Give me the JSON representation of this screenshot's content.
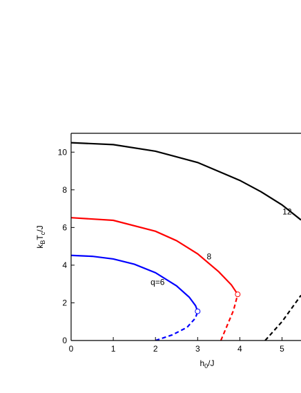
{
  "chart_data": {
    "type": "line",
    "xlabel": [
      {
        "text": "h"
      },
      {
        "text": "0",
        "sub": true
      },
      {
        "text": "/J"
      }
    ],
    "ylabel": [
      {
        "text": "k"
      },
      {
        "text": "B",
        "sub": true
      },
      {
        "text": "T"
      },
      {
        "text": "c",
        "sub": true
      },
      {
        "text": "/J"
      }
    ],
    "xlim": [
      0,
      5.45
    ],
    "ylim": [
      0,
      11
    ],
    "xticks": [
      0,
      1,
      2,
      3,
      4,
      5
    ],
    "yticks": [
      0,
      2,
      4,
      6,
      8,
      10
    ],
    "series": [
      {
        "color": "#0000ff",
        "dash": false,
        "x": [
          0,
          0.5,
          1,
          1.5,
          2,
          2.5,
          2.8,
          2.95,
          3.0
        ],
        "y": [
          4.52,
          4.47,
          4.33,
          4.05,
          3.6,
          2.9,
          2.3,
          1.85,
          1.55
        ]
      },
      {
        "color": "#0000ff",
        "dash": true,
        "x": [
          2.0,
          2.4,
          2.75,
          2.95,
          3.0
        ],
        "y": [
          0,
          0.3,
          0.7,
          1.2,
          1.55
        ]
      },
      {
        "color": "#ff0000",
        "dash": false,
        "x": [
          0,
          1,
          2,
          2.5,
          3,
          3.5,
          3.8,
          3.95
        ],
        "y": [
          6.52,
          6.38,
          5.8,
          5.3,
          4.6,
          3.65,
          2.95,
          2.45
        ]
      },
      {
        "color": "#ff0000",
        "dash": true,
        "x": [
          3.55,
          3.7,
          3.85,
          3.95
        ],
        "y": [
          0,
          0.8,
          1.6,
          2.45
        ]
      },
      {
        "color": "#000000",
        "dash": false,
        "x": [
          0,
          1,
          2,
          3,
          4,
          4.5,
          5,
          5.45
        ],
        "y": [
          10.5,
          10.4,
          10.05,
          9.45,
          8.5,
          7.9,
          7.2,
          6.4
        ]
      },
      {
        "color": "#000000",
        "dash": true,
        "x": [
          4.6,
          5.0,
          5.45
        ],
        "y": [
          0,
          1.0,
          2.4
        ]
      }
    ],
    "markers": [
      {
        "x": 3.0,
        "y": 1.55,
        "color": "#0000ff"
      },
      {
        "x": 3.95,
        "y": 2.45,
        "color": "#ff0000"
      }
    ],
    "annotations": [
      {
        "text": "q=6",
        "x": 2.05,
        "y": 2.95
      },
      {
        "text": "8",
        "x": 3.27,
        "y": 4.3
      },
      {
        "text": "12",
        "x": 5.12,
        "y": 6.7
      }
    ]
  }
}
